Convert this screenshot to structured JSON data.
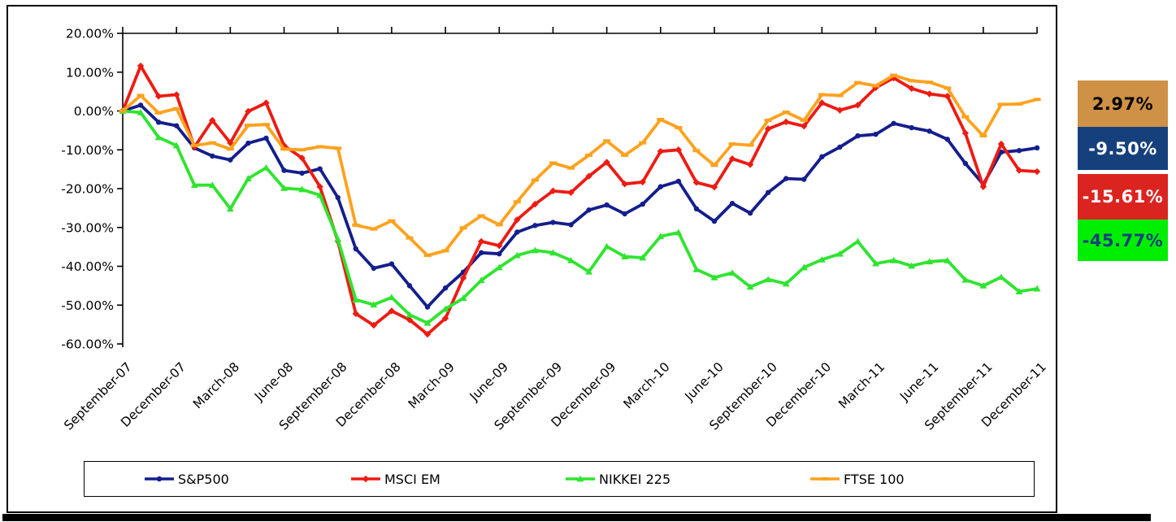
{
  "chart_data": {
    "type": "line",
    "title": "",
    "xlabel": "",
    "ylabel": "",
    "ylim": [
      -60,
      20
    ],
    "grid": false,
    "legend_position": "bottom",
    "y_tick_labels": [
      "20.00%",
      "10.00%",
      "0.00%",
      "-10.00%",
      "-20.00%",
      "-30.00%",
      "-40.00%",
      "-50.00%",
      "-60.00%"
    ],
    "x_tick_labels": [
      "September-07",
      "December-07",
      "March-08",
      "June-08",
      "September-08",
      "December-08",
      "March-09",
      "June-09",
      "September-09",
      "December-09",
      "March-10",
      "June-10",
      "September-10",
      "December-10",
      "March-11",
      "June-11",
      "September-11",
      "December-11"
    ],
    "x": [
      "September-07",
      "October-07",
      "November-07",
      "December-07",
      "January-08",
      "February-08",
      "March-08",
      "April-08",
      "May-08",
      "June-08",
      "July-08",
      "August-08",
      "September-08",
      "October-08",
      "November-08",
      "December-08",
      "January-09",
      "February-09",
      "March-09",
      "April-09",
      "May-09",
      "June-09",
      "July-09",
      "August-09",
      "September-09",
      "October-09",
      "November-09",
      "December-09",
      "January-10",
      "February-10",
      "March-10",
      "April-10",
      "May-10",
      "June-10",
      "July-10",
      "August-10",
      "September-10",
      "October-10",
      "November-10",
      "December-10",
      "January-11",
      "February-11",
      "March-11",
      "April-11",
      "May-11",
      "June-11",
      "July-11",
      "August-11",
      "September-11",
      "October-11",
      "November-11",
      "December-11"
    ],
    "series": [
      {
        "name": "S&P500",
        "color": "#141E8C",
        "marker": "circle",
        "values": [
          0.0,
          1.5,
          -2.9,
          -3.8,
          -9.5,
          -11.6,
          -12.6,
          -8.3,
          -7.0,
          -15.3,
          -16.0,
          -14.9,
          -22.3,
          -35.5,
          -40.5,
          -39.4,
          -45.0,
          -50.5,
          -45.6,
          -41.5,
          -36.5,
          -36.8,
          -31.2,
          -29.5,
          -28.7,
          -29.3,
          -25.5,
          -24.2,
          -26.5,
          -24.0,
          -19.5,
          -18.1,
          -25.2,
          -28.4,
          -23.8,
          -26.3,
          -21.0,
          -17.4,
          -17.6,
          -11.8,
          -9.3,
          -6.4,
          -6.0,
          -3.2,
          -4.3,
          -5.2,
          -7.3,
          -13.5,
          -18.9,
          -10.6,
          -10.2,
          -9.5
        ]
      },
      {
        "name": "MSCI EM",
        "color": "#ED1B12",
        "marker": "diamond",
        "values": [
          0.0,
          11.6,
          3.8,
          4.2,
          -9.3,
          -2.4,
          -8.2,
          -0.1,
          2.1,
          -8.9,
          -12.1,
          -19.5,
          -33.5,
          -52.2,
          -55.2,
          -51.5,
          -53.8,
          -57.5,
          -53.4,
          -43.0,
          -33.6,
          -34.7,
          -28.0,
          -24.0,
          -20.6,
          -21.0,
          -16.8,
          -13.2,
          -18.8,
          -18.3,
          -10.4,
          -10.0,
          -18.4,
          -19.6,
          -12.3,
          -13.8,
          -4.6,
          -2.8,
          -3.9,
          2.1,
          0.2,
          1.5,
          6.0,
          8.5,
          5.8,
          4.4,
          3.8,
          -5.7,
          -19.5,
          -8.5,
          -15.3,
          -15.61
        ]
      },
      {
        "name": "NIKKEI 225",
        "color": "#2FE42F",
        "marker": "triangle",
        "values": [
          0.0,
          -0.4,
          -6.8,
          -8.9,
          -19.1,
          -19.1,
          -25.2,
          -17.4,
          -14.6,
          -19.9,
          -20.2,
          -21.7,
          -33.0,
          -48.6,
          -49.9,
          -48.0,
          -52.5,
          -54.6,
          -51.0,
          -48.2,
          -43.6,
          -40.3,
          -37.2,
          -35.9,
          -36.5,
          -38.5,
          -41.4,
          -34.9,
          -37.5,
          -37.8,
          -32.3,
          -31.3,
          -40.8,
          -42.9,
          -41.7,
          -45.3,
          -43.4,
          -44.5,
          -40.3,
          -38.3,
          -36.8,
          -33.6,
          -39.3,
          -38.5,
          -39.9,
          -38.8,
          -38.5,
          -43.5,
          -45.0,
          -42.8,
          -46.5,
          -45.77
        ]
      },
      {
        "name": "FTSE 100",
        "color": "#FFA21E",
        "marker": "dash",
        "values": [
          0.0,
          4.0,
          -0.5,
          0.6,
          -8.9,
          -8.2,
          -9.8,
          -3.7,
          -3.5,
          -9.8,
          -10.0,
          -9.2,
          -9.6,
          -29.4,
          -30.4,
          -28.3,
          -32.7,
          -37.2,
          -36.0,
          -30.1,
          -27.0,
          -29.3,
          -23.4,
          -17.8,
          -13.4,
          -14.7,
          -11.4,
          -7.7,
          -11.4,
          -8.2,
          -2.2,
          -4.3,
          -10.2,
          -14.0,
          -8.5,
          -8.8,
          -2.4,
          -0.3,
          -2.4,
          4.2,
          4.0,
          7.3,
          6.5,
          9.2,
          7.8,
          7.4,
          5.9,
          -1.5,
          -6.4,
          1.7,
          1.8,
          2.97
        ]
      }
    ]
  },
  "legend": {
    "items": [
      {
        "label": "S&P500"
      },
      {
        "label": "MSCI EM"
      },
      {
        "label": "NIKKEI 225"
      },
      {
        "label": "FTSE 100"
      }
    ]
  },
  "end_labels": {
    "boxes": [
      {
        "value": "2.97%",
        "series": "FTSE 100",
        "bg": "#CE9146",
        "text_color": "#000000"
      },
      {
        "value": "-9.50%",
        "series": "S&P500",
        "bg": "#16407C",
        "text_color": "#FFFFFF"
      },
      {
        "value": "-15.61%",
        "series": "MSCI EM",
        "bg": "#DB2420",
        "text_color": "#FFFFFF"
      },
      {
        "value": "-45.77%",
        "series": "NIKKEI 225",
        "bg": "#00EE00",
        "text_color": "#16407C"
      }
    ]
  }
}
